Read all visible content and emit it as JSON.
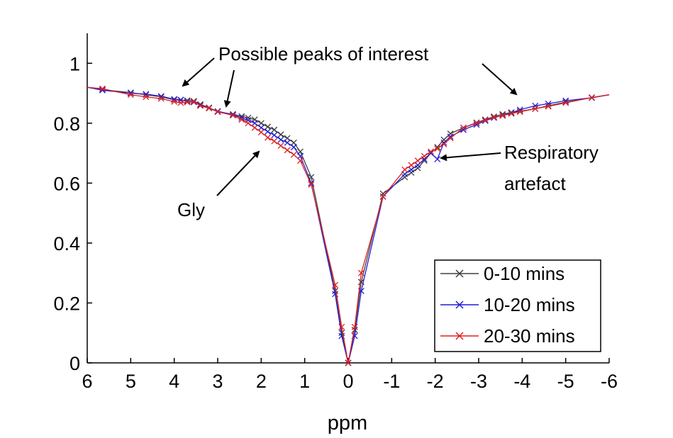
{
  "chart_data": {
    "type": "line",
    "xlabel": "ppm",
    "ylabel": "",
    "xlim": [
      6,
      -6
    ],
    "ylim": [
      0,
      1.1
    ],
    "x_reversed": true,
    "grid": false,
    "legend_position": "bottom-right",
    "xticks": [
      6,
      5,
      4,
      3,
      2,
      1,
      0,
      -1,
      -2,
      -3,
      -4,
      -5,
      -6
    ],
    "xtick_labels": [
      "6",
      "5",
      "4",
      "3",
      "2",
      "1",
      "0",
      "-1",
      "-2",
      "-3",
      "-4",
      "-5",
      "-6"
    ],
    "yticks": [
      0,
      0.2,
      0.4,
      0.6,
      0.8,
      1
    ],
    "ytick_labels": [
      "0",
      "0.2",
      "0.4",
      "0.6",
      "0.8",
      "1"
    ],
    "series": [
      {
        "name": "0-10 mins",
        "color": "#404040",
        "x": [
          6,
          5.65,
          5.0,
          4.65,
          4.3,
          4.0,
          3.85,
          3.7,
          3.55,
          3.4,
          3.2,
          3.0,
          2.65,
          2.45,
          2.3,
          2.15,
          2.0,
          1.85,
          1.7,
          1.55,
          1.4,
          1.25,
          1.1,
          0.85,
          0.3,
          0.15,
          0,
          -0.15,
          -0.3,
          -0.8,
          -1.3,
          -1.45,
          -1.6,
          -1.75,
          -1.9,
          -2.05,
          -2.2,
          -2.35,
          -2.65,
          -2.95,
          -3.15,
          -3.35,
          -3.55,
          -3.75,
          -3.95,
          -4.3,
          -4.6,
          -5.0,
          -5.6,
          -6
        ],
        "y": [
          0.92,
          0.912,
          0.902,
          0.895,
          0.888,
          0.878,
          0.877,
          0.876,
          0.874,
          0.863,
          0.852,
          0.838,
          0.83,
          0.823,
          0.818,
          0.812,
          0.8,
          0.788,
          0.778,
          0.762,
          0.75,
          0.735,
          0.705,
          0.62,
          0.24,
          0.1,
          0.0,
          0.11,
          0.27,
          0.565,
          0.62,
          0.635,
          0.65,
          0.675,
          0.7,
          0.72,
          0.745,
          0.765,
          0.785,
          0.802,
          0.812,
          0.822,
          0.83,
          0.836,
          0.84,
          0.848,
          0.858,
          0.87,
          0.885,
          0.895
        ]
      },
      {
        "name": "10-20 mins",
        "color": "#1f1fd6",
        "x": [
          6,
          5.65,
          5.0,
          4.65,
          4.3,
          4.0,
          3.85,
          3.7,
          3.55,
          3.4,
          3.2,
          3.0,
          2.65,
          2.45,
          2.3,
          2.15,
          2.0,
          1.85,
          1.7,
          1.55,
          1.4,
          1.25,
          1.1,
          0.85,
          0.3,
          0.15,
          0,
          -0.15,
          -0.3,
          -0.8,
          -1.3,
          -1.45,
          -1.6,
          -1.75,
          -1.9,
          -2.05,
          -2.2,
          -2.35,
          -2.65,
          -2.95,
          -3.15,
          -3.35,
          -3.55,
          -3.75,
          -3.95,
          -4.3,
          -4.6,
          -5.0,
          -5.6,
          -6
        ],
        "y": [
          0.92,
          0.91,
          0.9,
          0.897,
          0.89,
          0.88,
          0.878,
          0.872,
          0.87,
          0.86,
          0.85,
          0.84,
          0.828,
          0.818,
          0.81,
          0.8,
          0.785,
          0.772,
          0.76,
          0.745,
          0.735,
          0.72,
          0.69,
          0.6,
          0.23,
          0.09,
          0.0,
          0.09,
          0.24,
          0.555,
          0.63,
          0.645,
          0.66,
          0.68,
          0.7,
          0.68,
          0.735,
          0.755,
          0.778,
          0.795,
          0.808,
          0.818,
          0.826,
          0.834,
          0.845,
          0.858,
          0.865,
          0.875,
          0.885,
          0.895
        ]
      },
      {
        "name": "20-30 mins",
        "color": "#e02020",
        "x": [
          6,
          5.65,
          5.0,
          4.65,
          4.3,
          4.0,
          3.85,
          3.7,
          3.55,
          3.4,
          3.2,
          3.0,
          2.65,
          2.45,
          2.3,
          2.15,
          2.0,
          1.85,
          1.7,
          1.55,
          1.4,
          1.25,
          1.1,
          0.85,
          0.3,
          0.15,
          0,
          -0.15,
          -0.3,
          -0.8,
          -1.3,
          -1.45,
          -1.6,
          -1.75,
          -1.9,
          -2.05,
          -2.2,
          -2.35,
          -2.65,
          -2.95,
          -3.15,
          -3.35,
          -3.55,
          -3.75,
          -3.95,
          -4.3,
          -4.6,
          -5.0,
          -5.6,
          -6
        ],
        "y": [
          0.92,
          0.915,
          0.895,
          0.888,
          0.882,
          0.872,
          0.868,
          0.87,
          0.872,
          0.858,
          0.85,
          0.838,
          0.826,
          0.812,
          0.8,
          0.785,
          0.77,
          0.752,
          0.74,
          0.725,
          0.71,
          0.695,
          0.675,
          0.595,
          0.26,
          0.12,
          0.0,
          0.12,
          0.3,
          0.555,
          0.645,
          0.66,
          0.675,
          0.69,
          0.705,
          0.715,
          0.73,
          0.75,
          0.785,
          0.8,
          0.81,
          0.82,
          0.825,
          0.832,
          0.838,
          0.848,
          0.856,
          0.868,
          0.886,
          0.895
        ]
      }
    ],
    "annotations": [
      {
        "id": "peaks",
        "text": "Possible peaks of interest"
      },
      {
        "id": "gly",
        "text": "Gly"
      },
      {
        "id": "resp_line1",
        "text": "Respiratory"
      },
      {
        "id": "resp_line2",
        "text": "artefact"
      }
    ]
  }
}
